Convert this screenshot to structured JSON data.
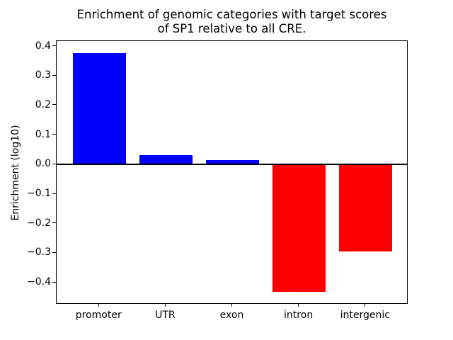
{
  "title": {
    "line1": "Enrichment of genomic categories with target scores",
    "line2": "of SP1 relative to all CRE."
  },
  "chart_data": {
    "type": "bar",
    "title": "Enrichment of genomic categories with target scores\nof SP1 relative to all CRE.",
    "categories": [
      "promoter",
      "UTR",
      "exon",
      "intron",
      "intergenic"
    ],
    "values": [
      0.377,
      0.031,
      0.014,
      -0.43,
      -0.294
    ],
    "bar_colors": [
      "#0000ff",
      "#0000ff",
      "#0000ff",
      "#ff0000",
      "#ff0000"
    ],
    "positive_color": "#0000ff",
    "negative_color": "#ff0000",
    "xlabel": "",
    "ylabel": "Enrichment (log10)",
    "yticks": [
      -0.4,
      -0.3,
      -0.2,
      -0.1,
      0.0,
      0.1,
      0.2,
      0.3,
      0.4
    ],
    "ytick_labels": [
      "−0.4",
      "−0.3",
      "−0.2",
      "−0.1",
      "0.0",
      "0.1",
      "0.2",
      "0.3",
      "0.4"
    ],
    "ylim": [
      -0.474,
      0.418
    ],
    "zero_line": true,
    "grid": false,
    "legend": null,
    "bar_width_fraction": 0.8,
    "background_color": "#ffffff",
    "axis_color": "#000000",
    "text_color": "#000000"
  }
}
